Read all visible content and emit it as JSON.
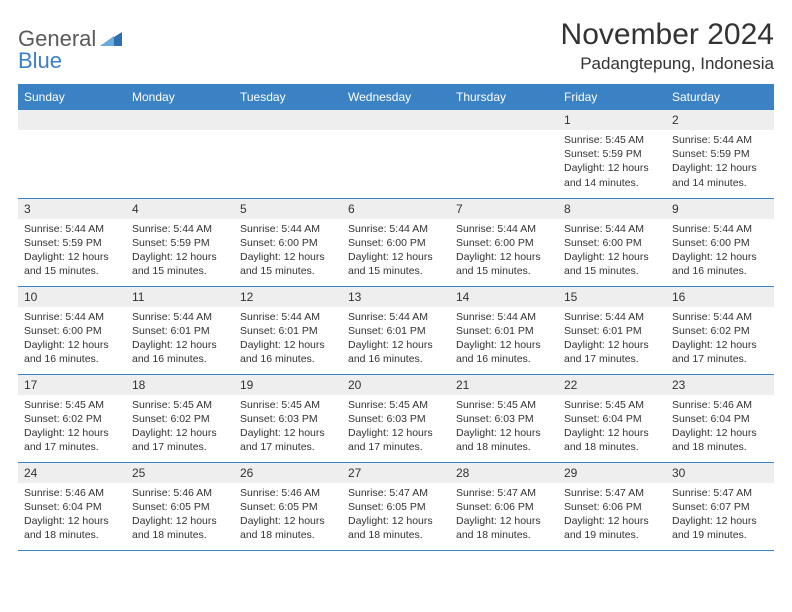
{
  "logo": {
    "general": "General",
    "blue": "Blue"
  },
  "title": "November 2024",
  "location": "Padangtepung, Indonesia",
  "colors": {
    "header_bg": "#3b82c4",
    "header_fg": "#ffffff",
    "daynum_bg": "#eeeeee",
    "row_border": "#3b82c4",
    "logo_gray": "#5a5a5a",
    "logo_blue": "#3b7fc4"
  },
  "weekdays": [
    "Sunday",
    "Monday",
    "Tuesday",
    "Wednesday",
    "Thursday",
    "Friday",
    "Saturday"
  ],
  "weeks": [
    [
      {
        "day": "",
        "lines": []
      },
      {
        "day": "",
        "lines": []
      },
      {
        "day": "",
        "lines": []
      },
      {
        "day": "",
        "lines": []
      },
      {
        "day": "",
        "lines": []
      },
      {
        "day": "1",
        "lines": [
          "Sunrise: 5:45 AM",
          "Sunset: 5:59 PM",
          "Daylight: 12 hours and 14 minutes."
        ]
      },
      {
        "day": "2",
        "lines": [
          "Sunrise: 5:44 AM",
          "Sunset: 5:59 PM",
          "Daylight: 12 hours and 14 minutes."
        ]
      }
    ],
    [
      {
        "day": "3",
        "lines": [
          "Sunrise: 5:44 AM",
          "Sunset: 5:59 PM",
          "Daylight: 12 hours and 15 minutes."
        ]
      },
      {
        "day": "4",
        "lines": [
          "Sunrise: 5:44 AM",
          "Sunset: 5:59 PM",
          "Daylight: 12 hours and 15 minutes."
        ]
      },
      {
        "day": "5",
        "lines": [
          "Sunrise: 5:44 AM",
          "Sunset: 6:00 PM",
          "Daylight: 12 hours and 15 minutes."
        ]
      },
      {
        "day": "6",
        "lines": [
          "Sunrise: 5:44 AM",
          "Sunset: 6:00 PM",
          "Daylight: 12 hours and 15 minutes."
        ]
      },
      {
        "day": "7",
        "lines": [
          "Sunrise: 5:44 AM",
          "Sunset: 6:00 PM",
          "Daylight: 12 hours and 15 minutes."
        ]
      },
      {
        "day": "8",
        "lines": [
          "Sunrise: 5:44 AM",
          "Sunset: 6:00 PM",
          "Daylight: 12 hours and 15 minutes."
        ]
      },
      {
        "day": "9",
        "lines": [
          "Sunrise: 5:44 AM",
          "Sunset: 6:00 PM",
          "Daylight: 12 hours and 16 minutes."
        ]
      }
    ],
    [
      {
        "day": "10",
        "lines": [
          "Sunrise: 5:44 AM",
          "Sunset: 6:00 PM",
          "Daylight: 12 hours and 16 minutes."
        ]
      },
      {
        "day": "11",
        "lines": [
          "Sunrise: 5:44 AM",
          "Sunset: 6:01 PM",
          "Daylight: 12 hours and 16 minutes."
        ]
      },
      {
        "day": "12",
        "lines": [
          "Sunrise: 5:44 AM",
          "Sunset: 6:01 PM",
          "Daylight: 12 hours and 16 minutes."
        ]
      },
      {
        "day": "13",
        "lines": [
          "Sunrise: 5:44 AM",
          "Sunset: 6:01 PM",
          "Daylight: 12 hours and 16 minutes."
        ]
      },
      {
        "day": "14",
        "lines": [
          "Sunrise: 5:44 AM",
          "Sunset: 6:01 PM",
          "Daylight: 12 hours and 16 minutes."
        ]
      },
      {
        "day": "15",
        "lines": [
          "Sunrise: 5:44 AM",
          "Sunset: 6:01 PM",
          "Daylight: 12 hours and 17 minutes."
        ]
      },
      {
        "day": "16",
        "lines": [
          "Sunrise: 5:44 AM",
          "Sunset: 6:02 PM",
          "Daylight: 12 hours and 17 minutes."
        ]
      }
    ],
    [
      {
        "day": "17",
        "lines": [
          "Sunrise: 5:45 AM",
          "Sunset: 6:02 PM",
          "Daylight: 12 hours and 17 minutes."
        ]
      },
      {
        "day": "18",
        "lines": [
          "Sunrise: 5:45 AM",
          "Sunset: 6:02 PM",
          "Daylight: 12 hours and 17 minutes."
        ]
      },
      {
        "day": "19",
        "lines": [
          "Sunrise: 5:45 AM",
          "Sunset: 6:03 PM",
          "Daylight: 12 hours and 17 minutes."
        ]
      },
      {
        "day": "20",
        "lines": [
          "Sunrise: 5:45 AM",
          "Sunset: 6:03 PM",
          "Daylight: 12 hours and 17 minutes."
        ]
      },
      {
        "day": "21",
        "lines": [
          "Sunrise: 5:45 AM",
          "Sunset: 6:03 PM",
          "Daylight: 12 hours and 18 minutes."
        ]
      },
      {
        "day": "22",
        "lines": [
          "Sunrise: 5:45 AM",
          "Sunset: 6:04 PM",
          "Daylight: 12 hours and 18 minutes."
        ]
      },
      {
        "day": "23",
        "lines": [
          "Sunrise: 5:46 AM",
          "Sunset: 6:04 PM",
          "Daylight: 12 hours and 18 minutes."
        ]
      }
    ],
    [
      {
        "day": "24",
        "lines": [
          "Sunrise: 5:46 AM",
          "Sunset: 6:04 PM",
          "Daylight: 12 hours and 18 minutes."
        ]
      },
      {
        "day": "25",
        "lines": [
          "Sunrise: 5:46 AM",
          "Sunset: 6:05 PM",
          "Daylight: 12 hours and 18 minutes."
        ]
      },
      {
        "day": "26",
        "lines": [
          "Sunrise: 5:46 AM",
          "Sunset: 6:05 PM",
          "Daylight: 12 hours and 18 minutes."
        ]
      },
      {
        "day": "27",
        "lines": [
          "Sunrise: 5:47 AM",
          "Sunset: 6:05 PM",
          "Daylight: 12 hours and 18 minutes."
        ]
      },
      {
        "day": "28",
        "lines": [
          "Sunrise: 5:47 AM",
          "Sunset: 6:06 PM",
          "Daylight: 12 hours and 18 minutes."
        ]
      },
      {
        "day": "29",
        "lines": [
          "Sunrise: 5:47 AM",
          "Sunset: 6:06 PM",
          "Daylight: 12 hours and 19 minutes."
        ]
      },
      {
        "day": "30",
        "lines": [
          "Sunrise: 5:47 AM",
          "Sunset: 6:07 PM",
          "Daylight: 12 hours and 19 minutes."
        ]
      }
    ]
  ]
}
